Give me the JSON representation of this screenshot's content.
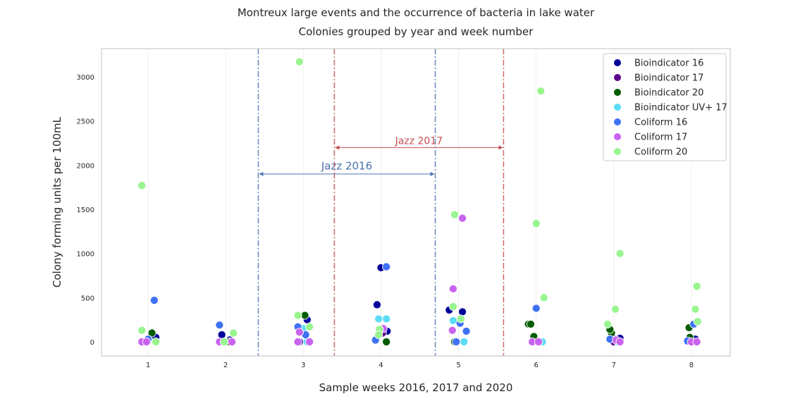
{
  "chart_data": {
    "type": "scatter",
    "title": "Montreux large events and the occurrence of bacteria in lake water",
    "subtitle": "Colonies grouped by year and week number",
    "xlabel": "Sample weeks 2016, 2017 and 2020",
    "ylabel": "Colony forming units per 100mL",
    "x_categories": [
      "1",
      "2",
      "3",
      "4",
      "5",
      "6",
      "7",
      "8"
    ],
    "y_ticks": [
      0,
      500,
      1000,
      1500,
      2000,
      2500,
      3000
    ],
    "ylim": [
      -160,
      3320
    ],
    "xlim": [
      0.4,
      8.5
    ],
    "grid": "vertical-light",
    "legend_placement": "top-right",
    "series": [
      {
        "name": "Bioindicator 16",
        "color": "#00009b",
        "points": [
          {
            "x": 1.05,
            "y": 60
          },
          {
            "x": 1.1,
            "y": 50
          },
          {
            "x": 1.95,
            "y": 80
          },
          {
            "x": 2.05,
            "y": 20
          },
          {
            "x": 3.05,
            "y": 250
          },
          {
            "x": 2.95,
            "y": 0
          },
          {
            "x": 3.95,
            "y": 420
          },
          {
            "x": 4.0,
            "y": 840
          },
          {
            "x": 4.08,
            "y": 120
          },
          {
            "x": 4.88,
            "y": 360
          },
          {
            "x": 5.05,
            "y": 340
          },
          {
            "x": 6.98,
            "y": 50
          },
          {
            "x": 7.08,
            "y": 40
          },
          {
            "x": 8.05,
            "y": 30
          }
        ]
      },
      {
        "name": "Bioindicator 17",
        "color": "#5b008a",
        "points": [
          {
            "x": 2.0,
            "y": 0
          },
          {
            "x": 4.02,
            "y": 100
          },
          {
            "x": 7.0,
            "y": 0
          }
        ]
      },
      {
        "name": "Bioindicator 20",
        "color": "#005c00",
        "points": [
          {
            "x": 1.05,
            "y": 100
          },
          {
            "x": 2.05,
            "y": 0
          },
          {
            "x": 3.02,
            "y": 300
          },
          {
            "x": 4.07,
            "y": 0
          },
          {
            "x": 4.95,
            "y": 0
          },
          {
            "x": 5.9,
            "y": 200
          },
          {
            "x": 5.93,
            "y": 200
          },
          {
            "x": 5.97,
            "y": 60
          },
          {
            "x": 6.97,
            "y": 100
          },
          {
            "x": 6.95,
            "y": 140
          },
          {
            "x": 7.97,
            "y": 160
          },
          {
            "x": 7.98,
            "y": 50
          }
        ]
      },
      {
        "name": "Bioindicator UV+ 17",
        "color": "#5cdcf5",
        "points": [
          {
            "x": 1.0,
            "y": 10
          },
          {
            "x": 3.0,
            "y": 150
          },
          {
            "x": 3.05,
            "y": 0
          },
          {
            "x": 3.97,
            "y": 260
          },
          {
            "x": 4.07,
            "y": 260
          },
          {
            "x": 4.93,
            "y": 240
          },
          {
            "x": 5.07,
            "y": 0
          },
          {
            "x": 6.08,
            "y": 0
          },
          {
            "x": 7.05,
            "y": 0
          },
          {
            "x": 7.98,
            "y": 0
          }
        ]
      },
      {
        "name": "Coliform 16",
        "color": "#3f71f5",
        "points": [
          {
            "x": 1.08,
            "y": 470
          },
          {
            "x": 1.0,
            "y": 30
          },
          {
            "x": 1.92,
            "y": 190
          },
          {
            "x": 2.93,
            "y": 170
          },
          {
            "x": 3.03,
            "y": 80
          },
          {
            "x": 3.93,
            "y": 20
          },
          {
            "x": 4.07,
            "y": 850
          },
          {
            "x": 5.02,
            "y": 210
          },
          {
            "x": 5.1,
            "y": 120
          },
          {
            "x": 4.97,
            "y": 0
          },
          {
            "x": 6.0,
            "y": 380
          },
          {
            "x": 6.95,
            "y": 30
          },
          {
            "x": 7.95,
            "y": 10
          },
          {
            "x": 8.03,
            "y": 200
          }
        ]
      },
      {
        "name": "Coliform 17",
        "color": "#c863f0",
        "points": [
          {
            "x": 0.92,
            "y": 0
          },
          {
            "x": 0.98,
            "y": 0
          },
          {
            "x": 1.92,
            "y": 0
          },
          {
            "x": 2.08,
            "y": 0
          },
          {
            "x": 2.95,
            "y": 110
          },
          {
            "x": 2.93,
            "y": 0
          },
          {
            "x": 3.08,
            "y": 0
          },
          {
            "x": 4.03,
            "y": 150
          },
          {
            "x": 4.93,
            "y": 600
          },
          {
            "x": 5.05,
            "y": 1400
          },
          {
            "x": 4.92,
            "y": 130
          },
          {
            "x": 5.95,
            "y": 0
          },
          {
            "x": 6.03,
            "y": 0
          },
          {
            "x": 7.03,
            "y": 20
          },
          {
            "x": 7.08,
            "y": 0
          },
          {
            "x": 8.0,
            "y": 0
          },
          {
            "x": 8.07,
            "y": 0
          }
        ]
      },
      {
        "name": "Coliform 20",
        "color": "#98f58f",
        "points": [
          {
            "x": 0.92,
            "y": 1770
          },
          {
            "x": 0.92,
            "y": 130
          },
          {
            "x": 1.1,
            "y": 0
          },
          {
            "x": 2.1,
            "y": 100
          },
          {
            "x": 1.98,
            "y": 0
          },
          {
            "x": 2.95,
            "y": 3170
          },
          {
            "x": 2.93,
            "y": 300
          },
          {
            "x": 3.08,
            "y": 170
          },
          {
            "x": 3.98,
            "y": 140
          },
          {
            "x": 3.97,
            "y": 80
          },
          {
            "x": 4.95,
            "y": 1440
          },
          {
            "x": 4.93,
            "y": 400
          },
          {
            "x": 5.03,
            "y": 260
          },
          {
            "x": 6.06,
            "y": 2840
          },
          {
            "x": 6.0,
            "y": 1340
          },
          {
            "x": 6.1,
            "y": 500
          },
          {
            "x": 7.08,
            "y": 1000
          },
          {
            "x": 7.02,
            "y": 370
          },
          {
            "x": 6.92,
            "y": 200
          },
          {
            "x": 8.07,
            "y": 630
          },
          {
            "x": 8.05,
            "y": 370
          },
          {
            "x": 8.08,
            "y": 230
          }
        ]
      }
    ],
    "event_lines": [
      {
        "name": "Jazz 2016",
        "color": "#4c72b0",
        "start": 2.42,
        "end": 4.7,
        "arrow_y": 1900,
        "label_y": 1950
      },
      {
        "name": "Jazz 2017",
        "color": "#c44e52",
        "start": 3.4,
        "end": 5.58,
        "arrow_y": 2200,
        "label_y": 2240
      }
    ]
  }
}
